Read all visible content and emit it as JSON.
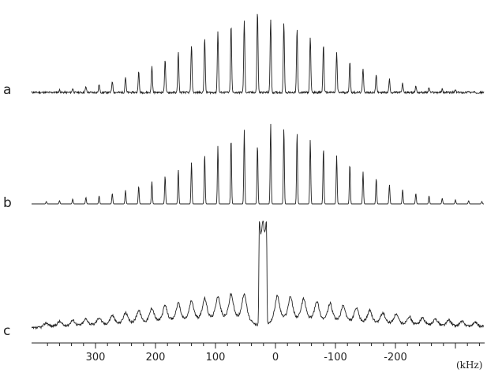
{
  "chart_data": {
    "type": "line",
    "title": "",
    "xlabel": "(kHz)",
    "ylabel": "",
    "xlim": [
      400,
      -365
    ],
    "xticks": [
      300,
      200,
      100,
      0,
      -100,
      -200
    ],
    "xtick_labels": [
      "300",
      "200",
      "100",
      "0",
      "-100",
      "-200"
    ],
    "grid": false,
    "legend": "none",
    "line_color": "#222222",
    "panels": [
      {
        "label": "a",
        "peaks": [
          {
            "x": 360,
            "h": 0.03
          },
          {
            "x": 338,
            "h": 0.05
          },
          {
            "x": 316,
            "h": 0.07
          },
          {
            "x": 294,
            "h": 0.1
          },
          {
            "x": 272,
            "h": 0.14
          },
          {
            "x": 250,
            "h": 0.19
          },
          {
            "x": 228,
            "h": 0.25
          },
          {
            "x": 206,
            "h": 0.32
          },
          {
            "x": 184,
            "h": 0.4
          },
          {
            "x": 162,
            "h": 0.49
          },
          {
            "x": 140,
            "h": 0.58
          },
          {
            "x": 118,
            "h": 0.67
          },
          {
            "x": 96,
            "h": 0.75
          },
          {
            "x": 74,
            "h": 0.82
          },
          {
            "x": 52,
            "h": 0.88
          },
          {
            "x": 30,
            "h": 1.0
          },
          {
            "x": 8,
            "h": 0.9
          },
          {
            "x": -14,
            "h": 0.85
          },
          {
            "x": -36,
            "h": 0.77
          },
          {
            "x": -58,
            "h": 0.68
          },
          {
            "x": -80,
            "h": 0.58
          },
          {
            "x": -102,
            "h": 0.48
          },
          {
            "x": -124,
            "h": 0.38
          },
          {
            "x": -146,
            "h": 0.29
          },
          {
            "x": -168,
            "h": 0.22
          },
          {
            "x": -190,
            "h": 0.16
          },
          {
            "x": -212,
            "h": 0.11
          },
          {
            "x": -234,
            "h": 0.08
          },
          {
            "x": -256,
            "h": 0.06
          },
          {
            "x": -278,
            "h": 0.04
          },
          {
            "x": -300,
            "h": 0.03
          },
          {
            "x": -322,
            "h": 0.02
          }
        ]
      },
      {
        "label": "b",
        "peaks": [
          {
            "x": 382,
            "h": 0.03
          },
          {
            "x": 360,
            "h": 0.04
          },
          {
            "x": 338,
            "h": 0.06
          },
          {
            "x": 316,
            "h": 0.08
          },
          {
            "x": 294,
            "h": 0.1
          },
          {
            "x": 272,
            "h": 0.13
          },
          {
            "x": 250,
            "h": 0.17
          },
          {
            "x": 228,
            "h": 0.22
          },
          {
            "x": 206,
            "h": 0.28
          },
          {
            "x": 184,
            "h": 0.35
          },
          {
            "x": 162,
            "h": 0.43
          },
          {
            "x": 140,
            "h": 0.52
          },
          {
            "x": 118,
            "h": 0.62
          },
          {
            "x": 96,
            "h": 0.72
          },
          {
            "x": 74,
            "h": 0.82
          },
          {
            "x": 52,
            "h": 0.92
          },
          {
            "x": 30,
            "h": 0.74
          },
          {
            "x": 8,
            "h": 1.0
          },
          {
            "x": -14,
            "h": 0.95
          },
          {
            "x": -36,
            "h": 0.89
          },
          {
            "x": -58,
            "h": 0.8
          },
          {
            "x": -80,
            "h": 0.7
          },
          {
            "x": -102,
            "h": 0.6
          },
          {
            "x": -124,
            "h": 0.5
          },
          {
            "x": -146,
            "h": 0.4
          },
          {
            "x": -168,
            "h": 0.32
          },
          {
            "x": -190,
            "h": 0.24
          },
          {
            "x": -212,
            "h": 0.18
          },
          {
            "x": -234,
            "h": 0.13
          },
          {
            "x": -256,
            "h": 0.1
          },
          {
            "x": -278,
            "h": 0.07
          },
          {
            "x": -300,
            "h": 0.05
          },
          {
            "x": -322,
            "h": 0.04
          },
          {
            "x": -344,
            "h": 0.03
          }
        ]
      },
      {
        "label": "c",
        "central_peak": {
          "x": 21,
          "h": 1.0
        },
        "peaks": [
          {
            "x": 382,
            "h": 0.05
          },
          {
            "x": 360,
            "h": 0.06
          },
          {
            "x": 338,
            "h": 0.07
          },
          {
            "x": 316,
            "h": 0.08
          },
          {
            "x": 294,
            "h": 0.09
          },
          {
            "x": 272,
            "h": 0.11
          },
          {
            "x": 250,
            "h": 0.13
          },
          {
            "x": 228,
            "h": 0.15
          },
          {
            "x": 206,
            "h": 0.17
          },
          {
            "x": 184,
            "h": 0.19
          },
          {
            "x": 162,
            "h": 0.21
          },
          {
            "x": 140,
            "h": 0.23
          },
          {
            "x": 118,
            "h": 0.25
          },
          {
            "x": 96,
            "h": 0.27
          },
          {
            "x": 74,
            "h": 0.29
          },
          {
            "x": 52,
            "h": 0.31
          },
          {
            "x": -3,
            "h": 0.29
          },
          {
            "x": -25,
            "h": 0.27
          },
          {
            "x": -47,
            "h": 0.25
          },
          {
            "x": -69,
            "h": 0.23
          },
          {
            "x": -91,
            "h": 0.21
          },
          {
            "x": -113,
            "h": 0.19
          },
          {
            "x": -135,
            "h": 0.17
          },
          {
            "x": -157,
            "h": 0.15
          },
          {
            "x": -179,
            "h": 0.13
          },
          {
            "x": -201,
            "h": 0.12
          },
          {
            "x": -223,
            "h": 0.1
          },
          {
            "x": -245,
            "h": 0.09
          },
          {
            "x": -267,
            "h": 0.08
          },
          {
            "x": -289,
            "h": 0.07
          },
          {
            "x": -311,
            "h": 0.06
          },
          {
            "x": -333,
            "h": 0.05
          },
          {
            "x": -355,
            "h": 0.05
          }
        ]
      }
    ]
  }
}
